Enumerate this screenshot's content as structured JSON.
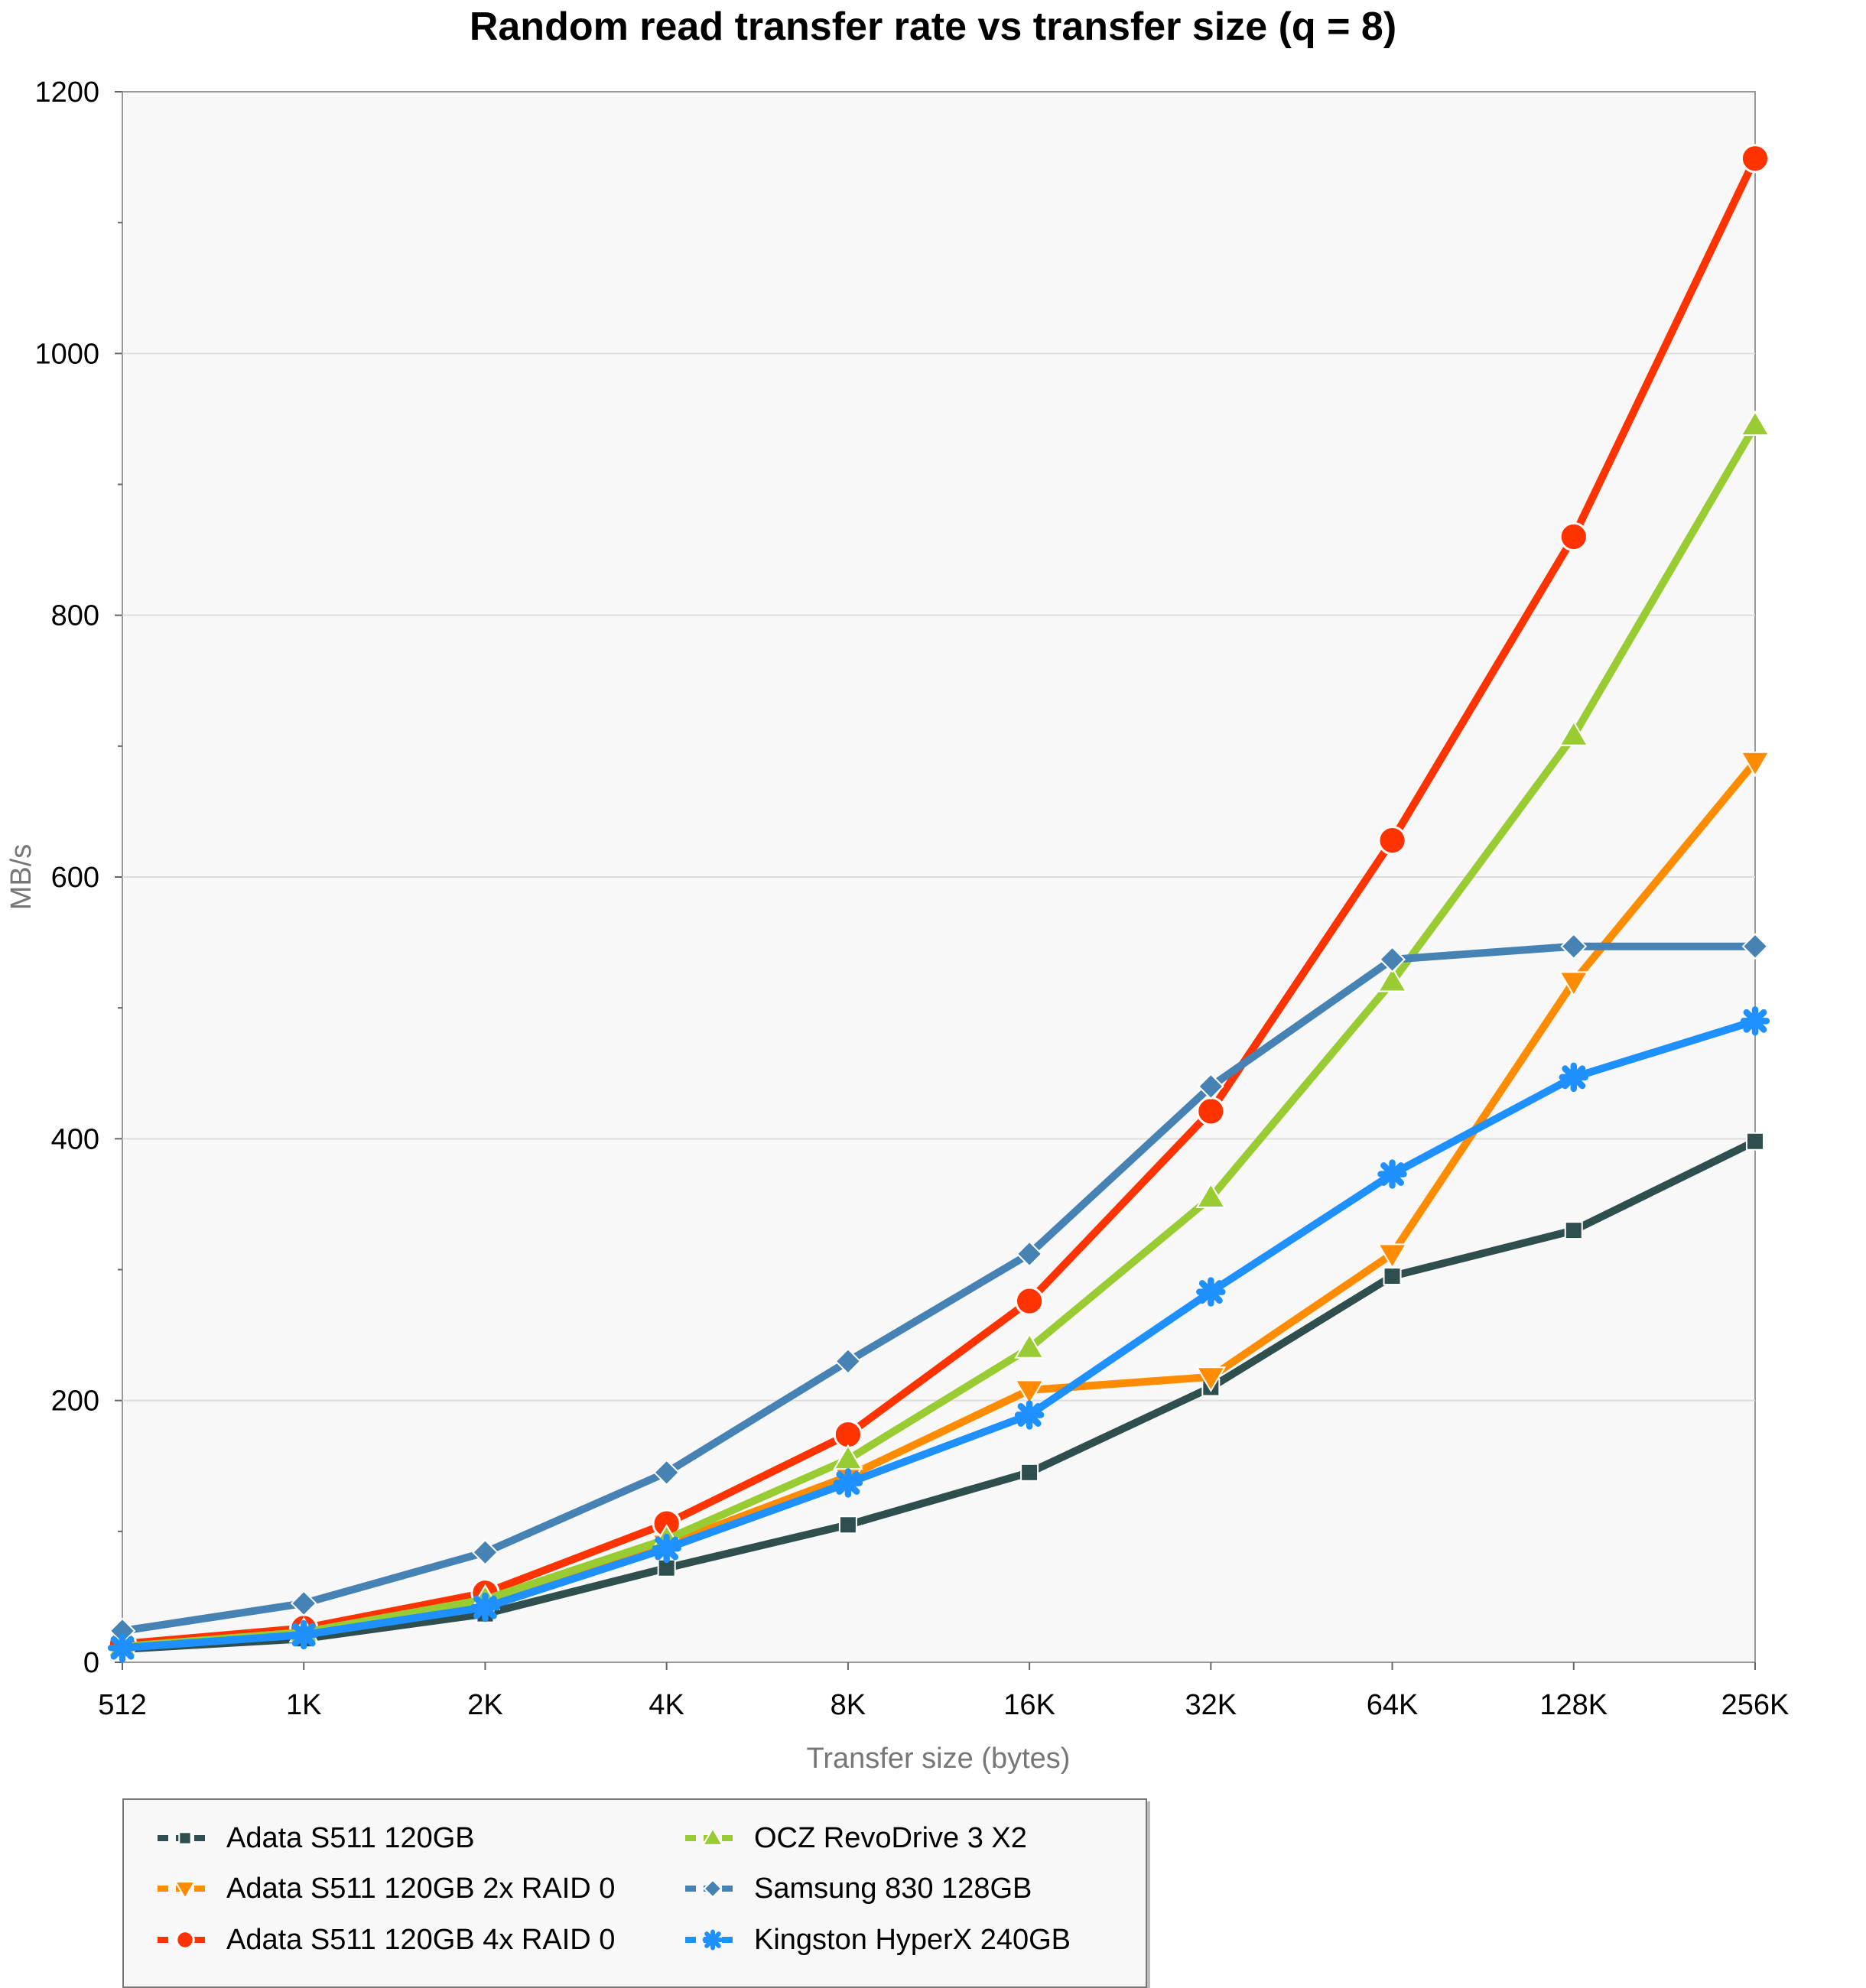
{
  "chart_data": {
    "type": "line",
    "title": "Random read transfer rate vs transfer size (q = 8)",
    "xlabel": "Transfer size (bytes)",
    "ylabel": "MB/s",
    "categories": [
      "512",
      "1K",
      "2K",
      "4K",
      "8K",
      "16K",
      "32K",
      "64K",
      "128K",
      "256K"
    ],
    "ylim": [
      0,
      1200
    ],
    "yticks": [
      "0",
      "200",
      "400",
      "600",
      "800",
      "1000",
      "1200"
    ],
    "grid": true,
    "legend_position": "bottom",
    "series": [
      {
        "name": "Adata S511 120GB",
        "color": "#2f4f4f",
        "marker": "square",
        "values": [
          10,
          18,
          37,
          72,
          105,
          145,
          210,
          295,
          330,
          398
        ]
      },
      {
        "name": "Adata S511 120GB 2x RAID 0",
        "color": "#ff8c00",
        "marker": "triangle-down",
        "values": [
          12,
          22,
          46,
          90,
          142,
          208,
          218,
          312,
          520,
          688
        ]
      },
      {
        "name": "Adata S511 120GB 4x RAID 0",
        "color": "#ff3300",
        "marker": "circle",
        "values": [
          14,
          26,
          53,
          106,
          174,
          276,
          421,
          628,
          860,
          1149
        ]
      },
      {
        "name": "OCZ RevoDrive 3 X2",
        "color": "#99cc33",
        "marker": "triangle-up",
        "values": [
          12,
          23,
          48,
          94,
          155,
          240,
          355,
          520,
          708,
          945
        ]
      },
      {
        "name": "Samsung 830 128GB",
        "color": "#4682b4",
        "marker": "diamond",
        "values": [
          24,
          45,
          84,
          145,
          230,
          312,
          440,
          537,
          547,
          547
        ]
      },
      {
        "name": "Kingston HyperX 240GB",
        "color": "#1e90ff",
        "marker": "asterisk",
        "values": [
          11,
          21,
          42,
          87,
          137,
          189,
          283,
          373,
          447,
          490
        ]
      }
    ]
  }
}
